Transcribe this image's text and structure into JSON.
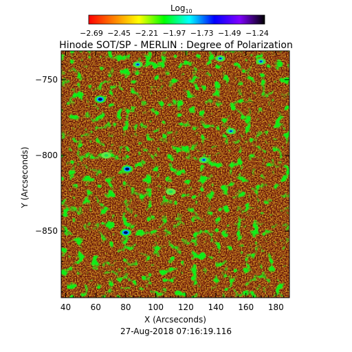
{
  "colorbar": {
    "title": "Log",
    "title_subscript": "10",
    "tick_labels": [
      "-2.69",
      "-2.45",
      "-2.21",
      "-1.97",
      "-1.73",
      "-1.49",
      "-1.24"
    ],
    "range": [
      -2.69,
      -1.24
    ],
    "colors": [
      "#ff0000",
      "#ff8000",
      "#ffff00",
      "#00ff00",
      "#00ffff",
      "#0000ff",
      "#7f00ff",
      "#000000"
    ]
  },
  "chart_data": {
    "type": "heatmap",
    "title": "Hinode SOT/SP - MERLIN : Degree of Polarization",
    "xlabel": "X (Arcseconds)",
    "ylabel": "Y (Arcseconds)",
    "xlim": [
      37,
      189
    ],
    "ylim": [
      -894,
      -731
    ],
    "xticks": [
      40,
      60,
      80,
      100,
      120,
      140,
      160,
      180
    ],
    "yticks": [
      -750,
      -800,
      -850
    ],
    "value_scale": "log10",
    "dominant_color": "#f07a1e",
    "features": [
      {
        "x": 63,
        "y": -763,
        "level": "high"
      },
      {
        "x": 81,
        "y": -809,
        "level": "high"
      },
      {
        "x": 80,
        "y": -851,
        "level": "high"
      },
      {
        "x": 150,
        "y": -784,
        "level": "medium"
      },
      {
        "x": 132,
        "y": -803,
        "level": "medium"
      },
      {
        "x": 170,
        "y": -738,
        "level": "medium"
      },
      {
        "x": 88,
        "y": -740,
        "level": "medium"
      },
      {
        "x": 143,
        "y": -736,
        "level": "medium"
      },
      {
        "x": 67,
        "y": -800,
        "level": "low"
      },
      {
        "x": 110,
        "y": -824,
        "level": "low"
      }
    ]
  },
  "date_label": "27-Aug-2018 07:16:19.116"
}
